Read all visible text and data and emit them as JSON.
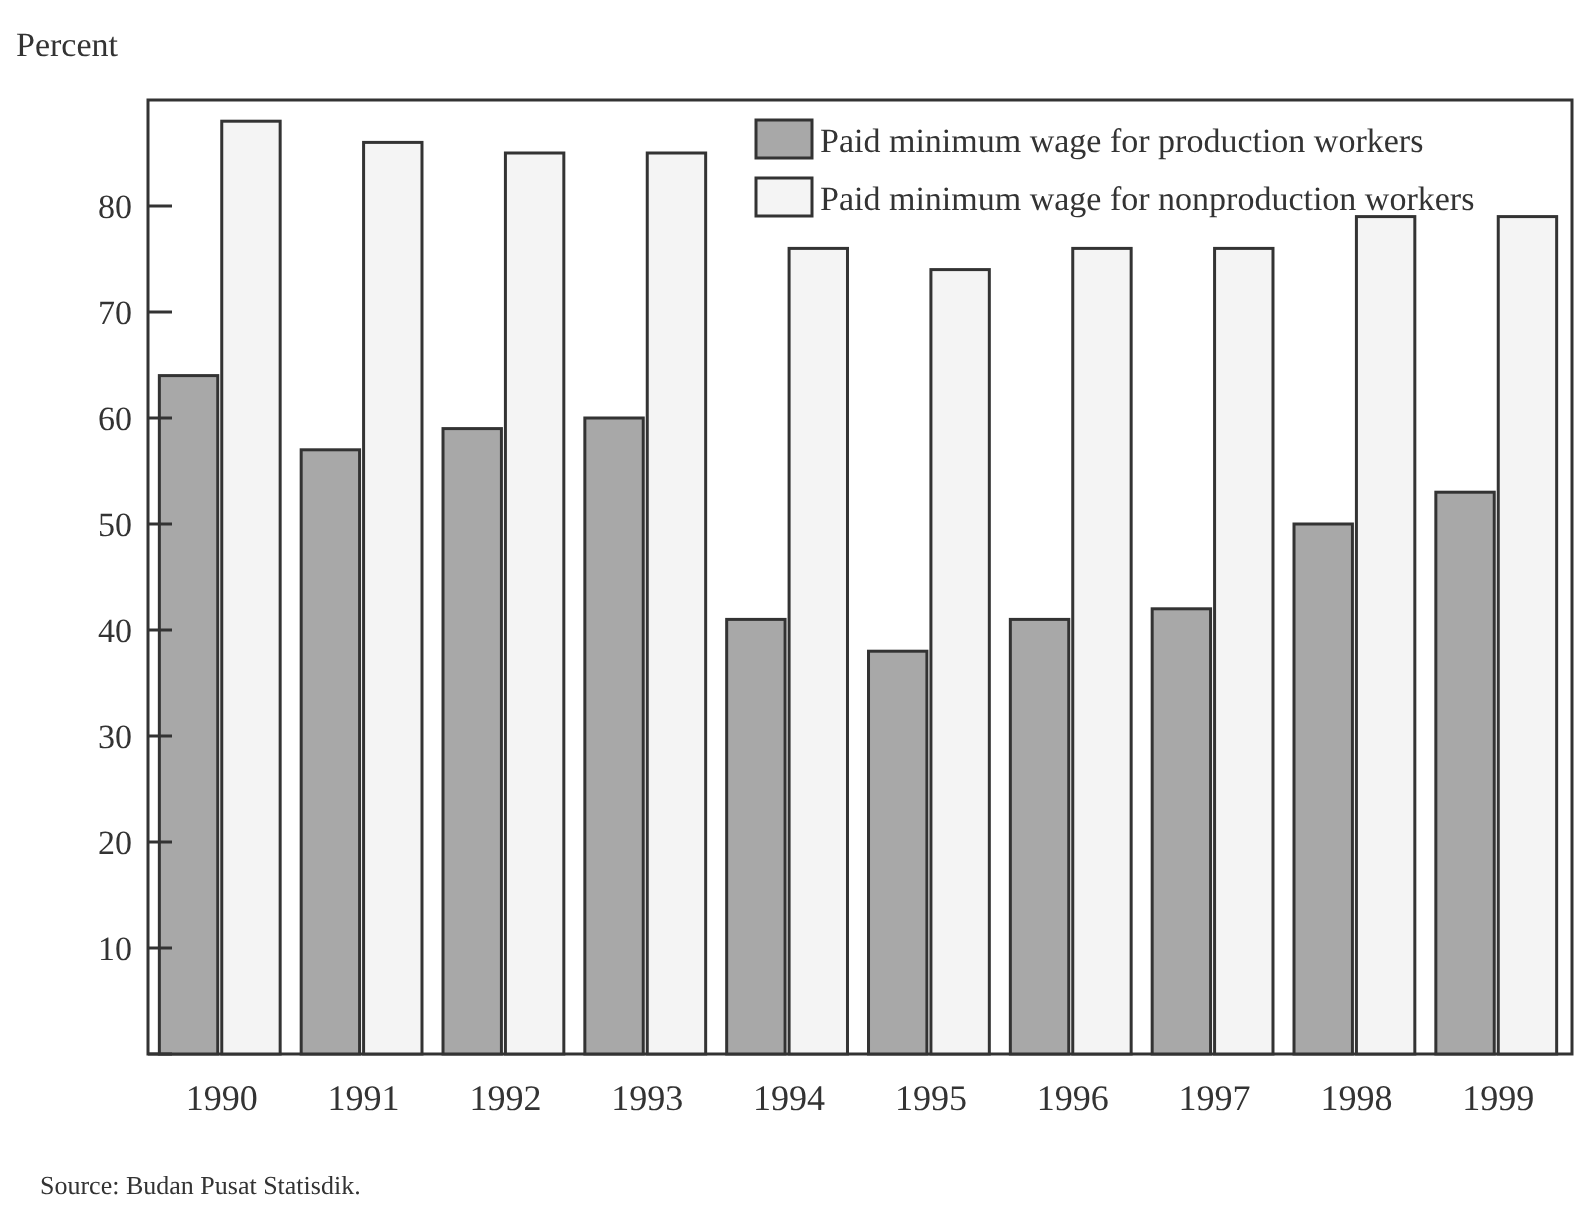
{
  "chart_data": {
    "type": "bar",
    "ylabel": "Percent",
    "categories": [
      "1990",
      "1991",
      "1992",
      "1993",
      "1994",
      "1995",
      "1996",
      "1997",
      "1998",
      "1999"
    ],
    "series": [
      {
        "name": "Paid minimum wage for production workers",
        "color": "#a8a8a8",
        "values": [
          64,
          57,
          59,
          60,
          41,
          38,
          41,
          42,
          50,
          53
        ]
      },
      {
        "name": "Paid minimum wage for nonproduction workers",
        "color": "#f4f4f4",
        "values": [
          88,
          86,
          85,
          85,
          76,
          74,
          76,
          76,
          79,
          79
        ]
      }
    ],
    "ylim": [
      0,
      90
    ],
    "yticks": [
      {
        "value": 0,
        "label": null
      },
      10,
      20,
      30,
      40,
      50,
      60,
      70,
      80
    ],
    "grid": false,
    "legend": "top right",
    "annotations": [
      "Source: Budan Pusat Statisdik."
    ]
  }
}
